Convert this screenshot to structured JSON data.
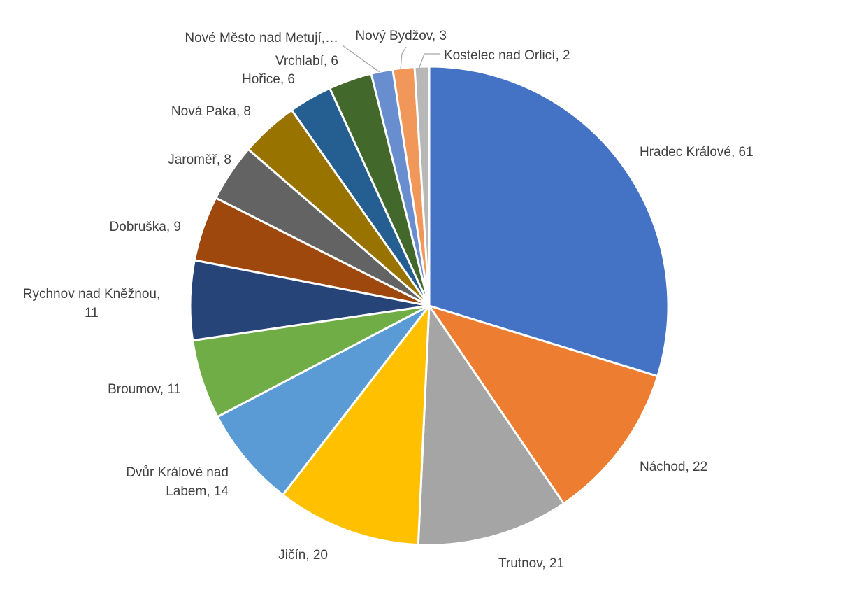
{
  "chart_data": {
    "type": "pie",
    "title": "",
    "legend": "none",
    "slices": [
      {
        "label": "Hradec Králové, 61",
        "value": 61,
        "color": "#4472C4"
      },
      {
        "label": "Náchod, 22",
        "value": 22,
        "color": "#ED7D31"
      },
      {
        "label": "Trutnov, 21",
        "value": 21,
        "color": "#A5A5A5"
      },
      {
        "label": "Jičín, 20",
        "value": 20,
        "color": "#FFC000"
      },
      {
        "label": "Dvůr Králové nad Labem, 14",
        "value": 14,
        "color": "#5B9BD5"
      },
      {
        "label": "Broumov, 11",
        "value": 11,
        "color": "#70AD47"
      },
      {
        "label": "Rychnov nad Kněžnou, 11",
        "value": 11,
        "color": "#264478"
      },
      {
        "label": "Dobruška, 9",
        "value": 9,
        "color": "#9E480E"
      },
      {
        "label": "Jaroměř, 8",
        "value": 8,
        "color": "#636363"
      },
      {
        "label": "Nová Paka, 8",
        "value": 8,
        "color": "#997300"
      },
      {
        "label": "Hořice, 6",
        "value": 6,
        "color": "#255E91"
      },
      {
        "label": "Vrchlabí, 6",
        "value": 6,
        "color": "#43682B"
      },
      {
        "label": "Nové Město nad Metují,…",
        "value": 3,
        "color": "#698ED0"
      },
      {
        "label": "Nový Bydžov, 3",
        "value": 3,
        "color": "#F1975A"
      },
      {
        "label": "Kostelec nad Orlicí, 2",
        "value": 2,
        "color": "#B7B7B7"
      }
    ]
  }
}
